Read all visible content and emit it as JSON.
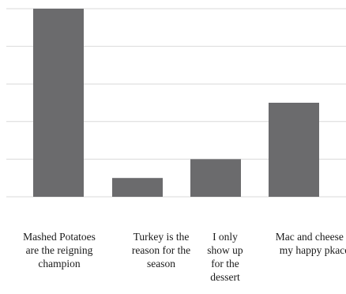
{
  "chart_data": {
    "type": "bar",
    "title": "",
    "xlabel": "",
    "ylabel": "",
    "categories": [
      "Mashed Potatoes are the reigning champion",
      "Turkey is the reason for the season",
      "I only show up for the dessert",
      "Mac and cheese is my happy pkace"
    ],
    "values": [
      10,
      1,
      2,
      5
    ],
    "ylim": [
      0,
      10
    ],
    "grid": true,
    "legend": "none",
    "colors": {
      "bar": "#6b6b6d",
      "grid": "#d9d9d9"
    }
  }
}
